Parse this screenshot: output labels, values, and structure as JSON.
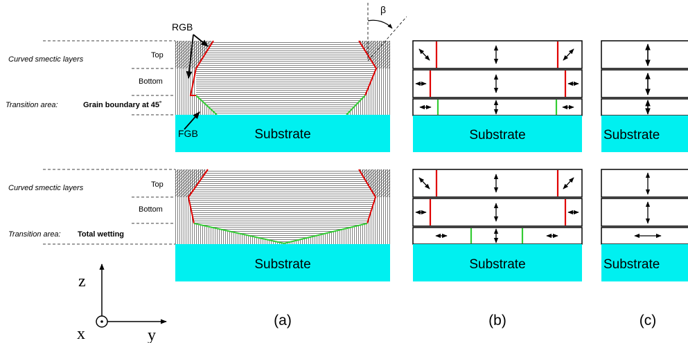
{
  "labels": {
    "rgb": "RGB",
    "fgb": "FGB",
    "beta": "β",
    "top": "Top",
    "bottom": "Bottom",
    "curved_smectic": "Curved smectic layers",
    "transition_prefix": "Transition area:",
    "grain_boundary": "Grain boundary at 45˚",
    "total_wetting": "Total wetting",
    "substrate": "Substrate",
    "panel_a": "(a)",
    "panel_b": "(b)",
    "panel_c": "(c)",
    "axis_z": "z",
    "axis_y": "y",
    "axis_x": "x"
  },
  "colors": {
    "substrate": "#00f0f0",
    "rgb_boundary": "#e00000",
    "fgb_boundary": "#33cc33",
    "layer_line": "#000000"
  },
  "icons": {
    "anchoring_vertical": "up-down-arrow",
    "anchoring_horizontal": "left-right-arrow",
    "anchoring_tilted": "diagonal-arrow"
  }
}
